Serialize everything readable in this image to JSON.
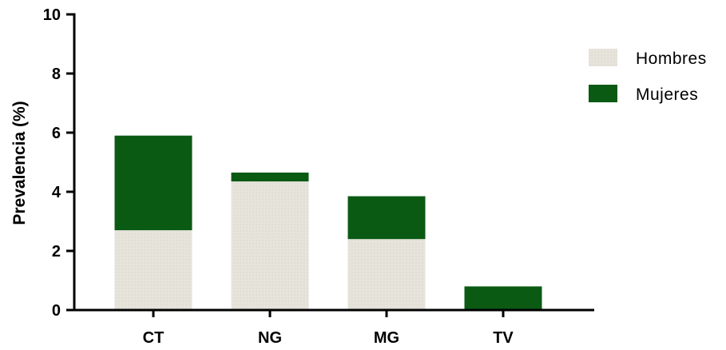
{
  "chart_data": {
    "type": "bar",
    "stacked": true,
    "categories": [
      "CT",
      "NG",
      "MG",
      "TV"
    ],
    "series": [
      {
        "name": "Hombres",
        "color": "#e6e3db",
        "values": [
          2.7,
          4.35,
          2.4,
          0
        ]
      },
      {
        "name": "Mujeres",
        "color": "#0b5a14",
        "values": [
          3.2,
          0.3,
          1.45,
          0.8
        ]
      }
    ],
    "ylabel": "Prevalencia (%)",
    "xlabel": "",
    "ylim": [
      0,
      10
    ],
    "yticks": [
      0,
      2,
      4,
      6,
      8,
      10
    ],
    "grid": false,
    "legend_position": "top-right"
  }
}
